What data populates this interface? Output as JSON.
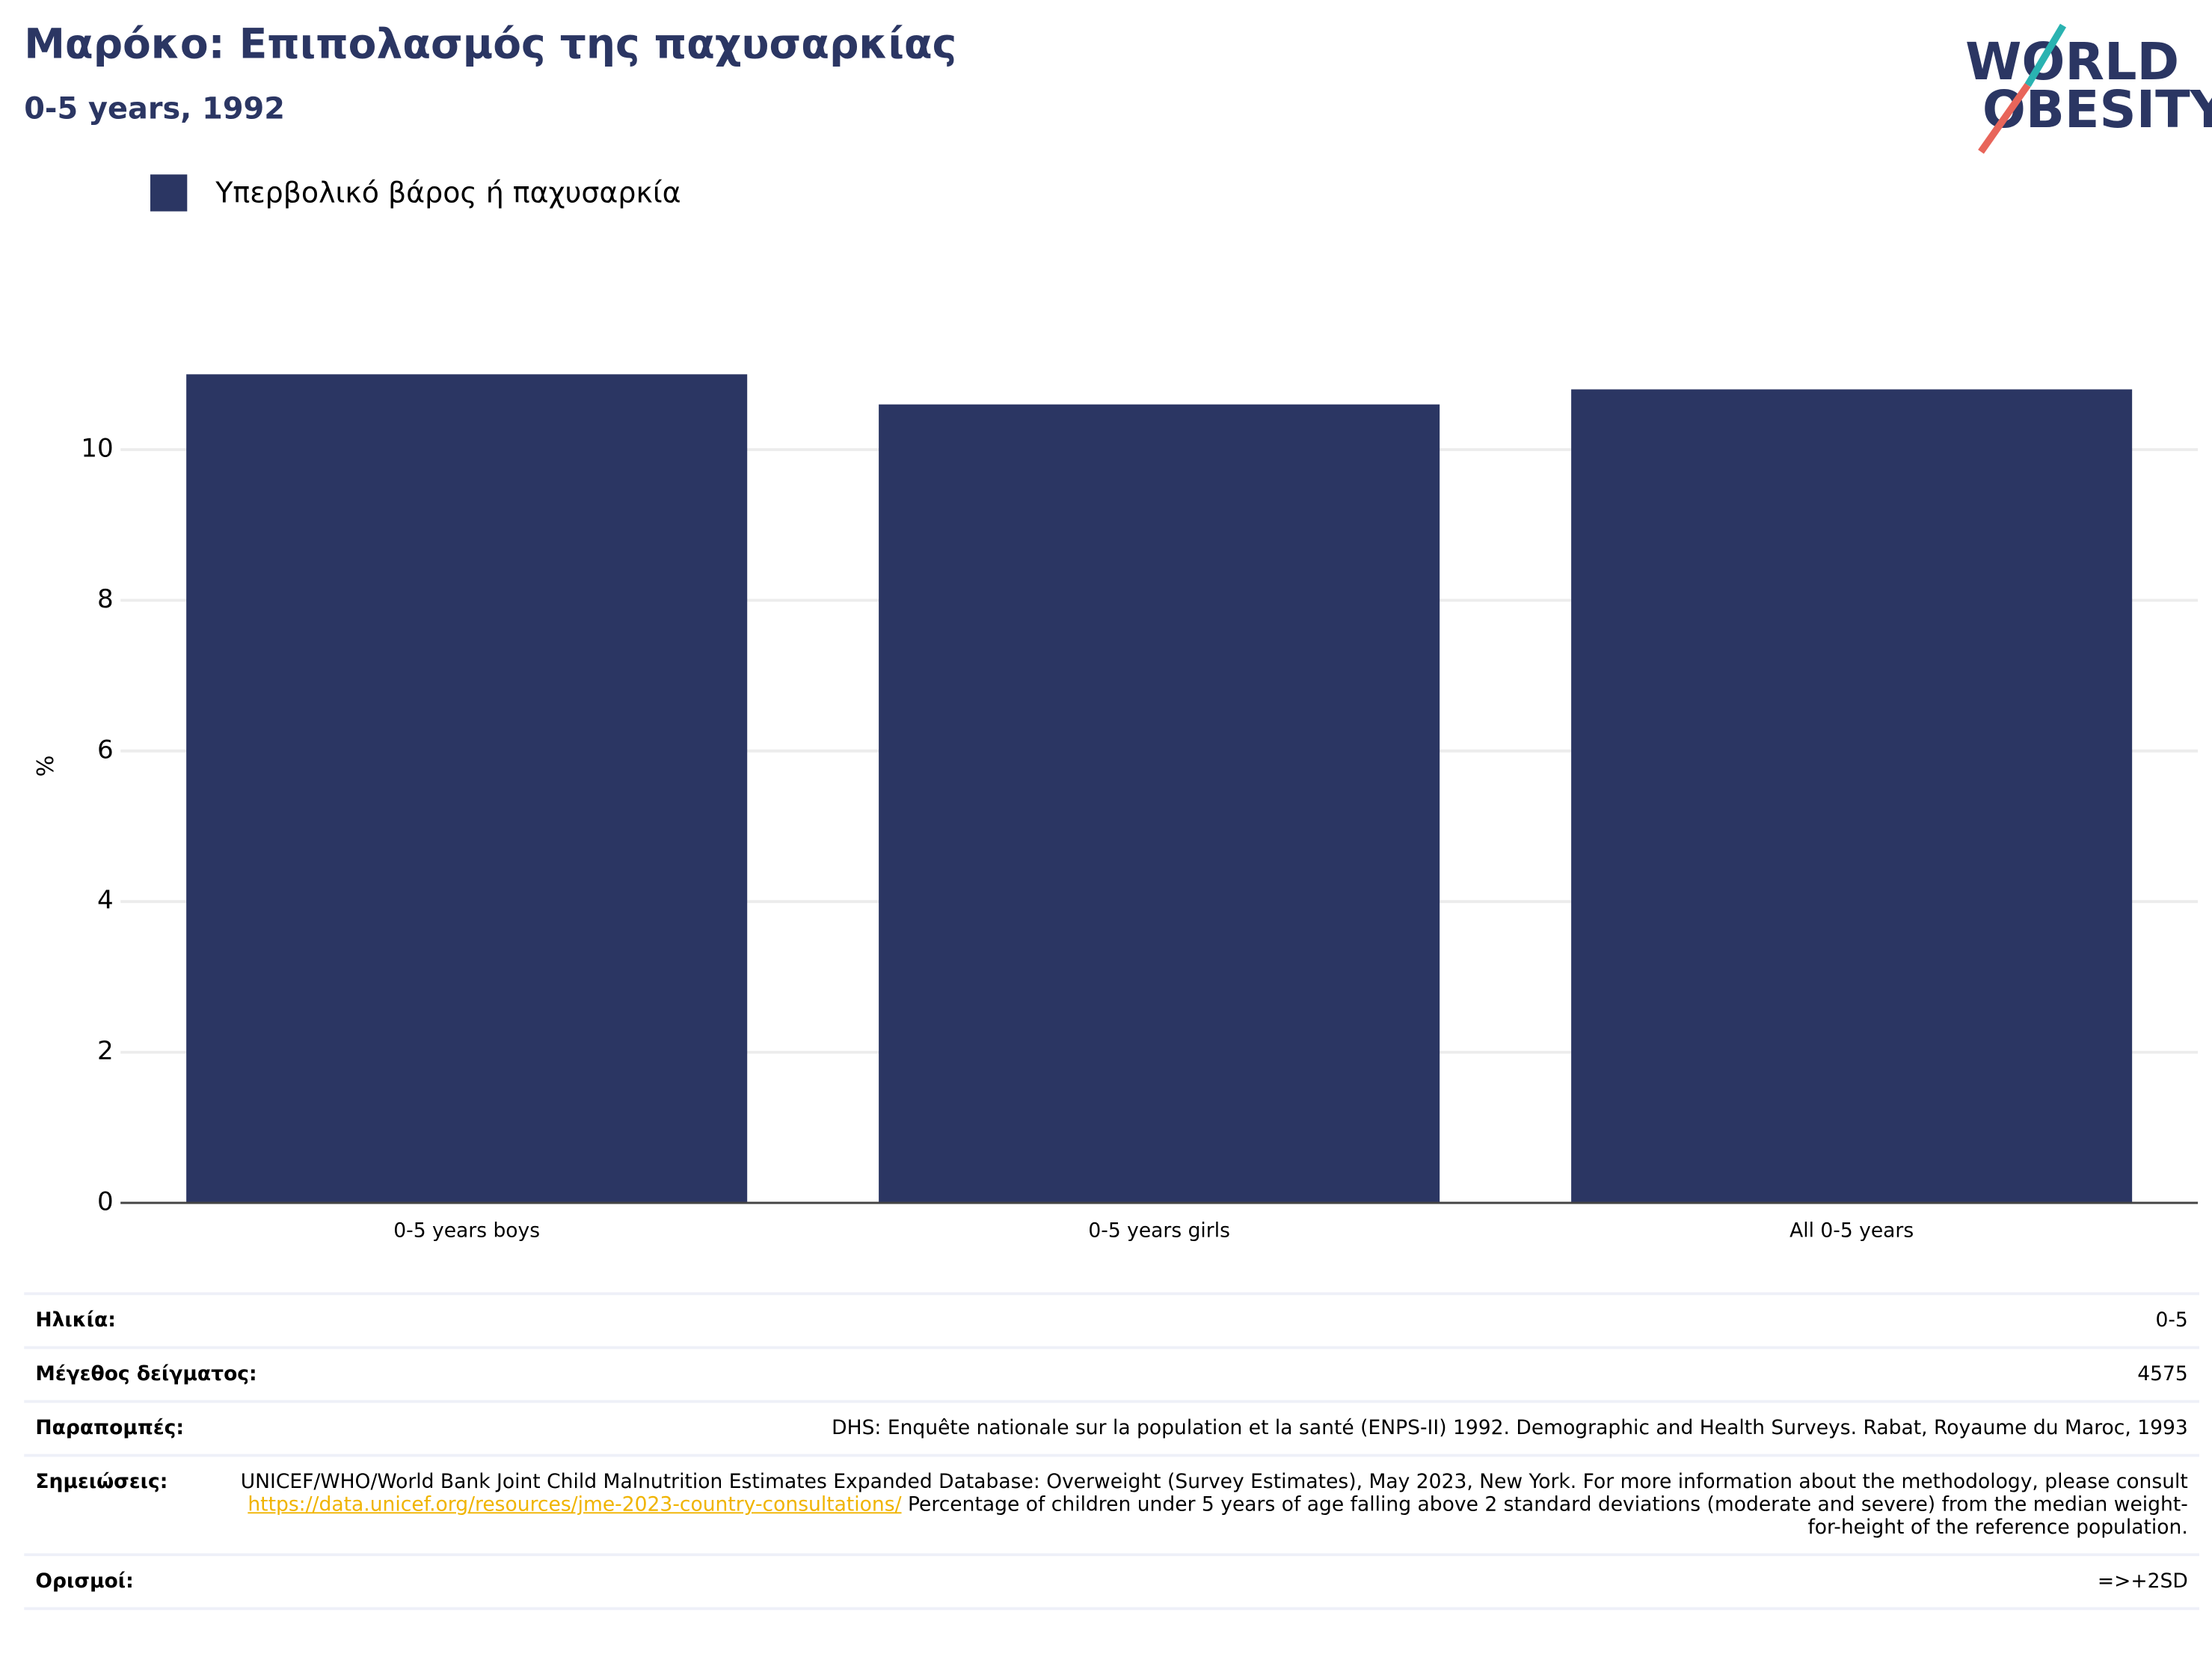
{
  "chart_data": {
    "type": "bar",
    "title": "Μαρόκο: Επιπολασμός της παχυσαρκίας",
    "subtitle": "0-5 years, 1992",
    "y_label": "%",
    "categories": [
      "0-5 years boys",
      "0-5 years girls",
      "All 0-5 years"
    ],
    "series": [
      {
        "name": "Υπερβολικό βάρος ή παχυσαρκία",
        "color": "#2b3663",
        "values": [
          11.0,
          10.6,
          10.8
        ]
      }
    ],
    "ylim": [
      0,
      11.6
    ],
    "yticks": [
      0,
      2,
      4,
      6,
      8,
      10
    ],
    "grid": true
  },
  "logo": {
    "line1": "WORLD",
    "line2": "OBESITY"
  },
  "table": {
    "rows": [
      {
        "label": "Ηλικία:",
        "value": "0-5"
      },
      {
        "label": "Μέγεθος δείγματος:",
        "value": "4575"
      },
      {
        "label": "Παραπομπές:",
        "value": "DHS: Enquête nationale sur la population et la santé (ENPS-II) 1992. Demographic and Health Surveys. Rabat, Royaume du Maroc, 1993"
      }
    ],
    "notes": {
      "label": "Σημειώσεις:",
      "text_before": "UNICEF/WHO/World Bank Joint Child Malnutrition Estimates Expanded Database: Overweight (Survey Estimates), May 2023, New York. For more information about the methodology, please consult",
      "link": "https://data.unicef.org/resources/jme-2023-country-consultations/",
      "text_after": "Percentage of children under 5 years of age falling above 2 standard deviations (moderate and severe) from the median weight-for-height of the reference population."
    },
    "definitions": {
      "label": "Ορισμοί:",
      "value": "=>+2SD"
    }
  }
}
